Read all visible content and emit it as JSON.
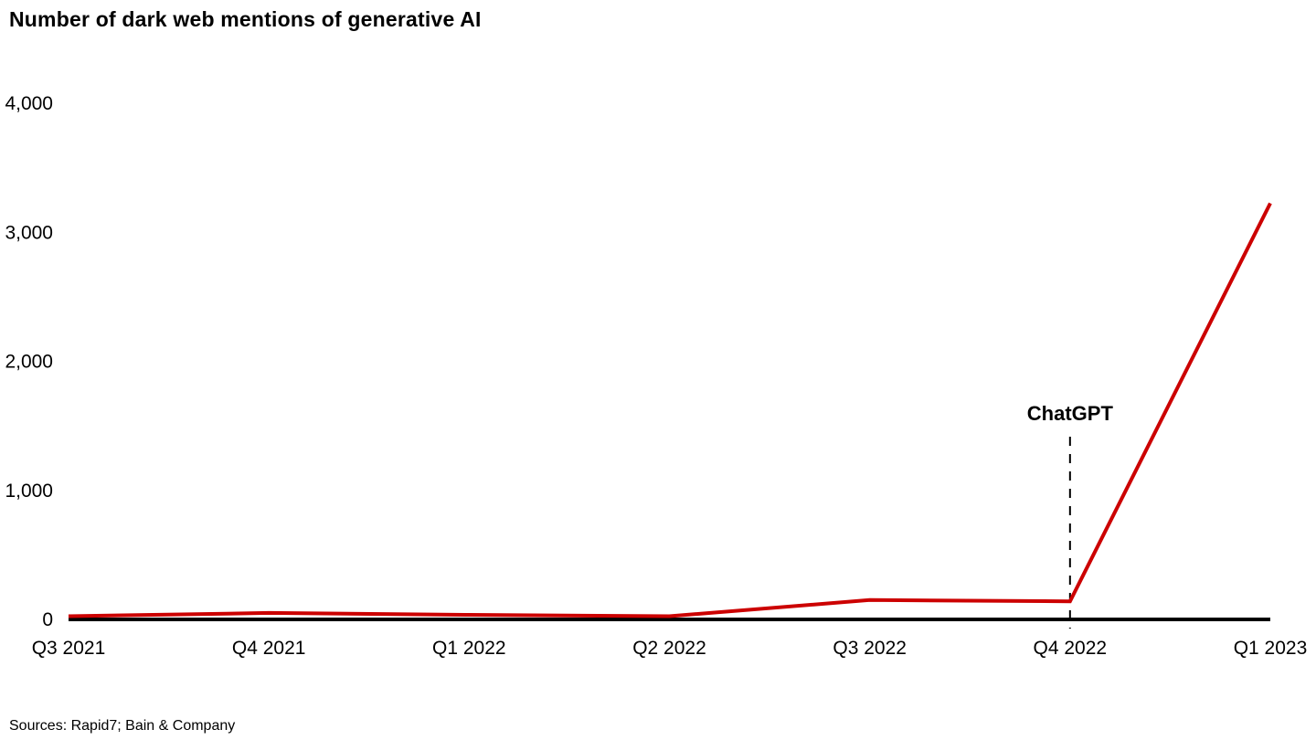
{
  "title": "Number of dark web mentions of generative AI",
  "source": "Sources: Rapid7; Bain & Company",
  "chart_data": {
    "type": "line",
    "title": "Number of dark web mentions of generative AI",
    "categories": [
      "Q3 2021",
      "Q4 2021",
      "Q1 2022",
      "Q2 2022",
      "Q3 2022",
      "Q4 2022",
      "Q1 2023"
    ],
    "series": [
      {
        "name": "Dark web mentions of generative AI",
        "values": [
          25,
          50,
          35,
          25,
          150,
          140,
          3225
        ],
        "color": "#cc0000"
      }
    ],
    "xlabel": "",
    "ylabel": "",
    "ylim": [
      0,
      4000
    ],
    "yticks": [
      0,
      1000,
      2000,
      3000,
      4000
    ],
    "ytick_labels": [
      "0",
      "1,000",
      "2,000",
      "3,000",
      "4,000"
    ],
    "grid": false,
    "legend": "none",
    "annotation": {
      "label": "ChatGPT",
      "category": "Q4 2022",
      "style": "dashed-vertical-line"
    }
  }
}
